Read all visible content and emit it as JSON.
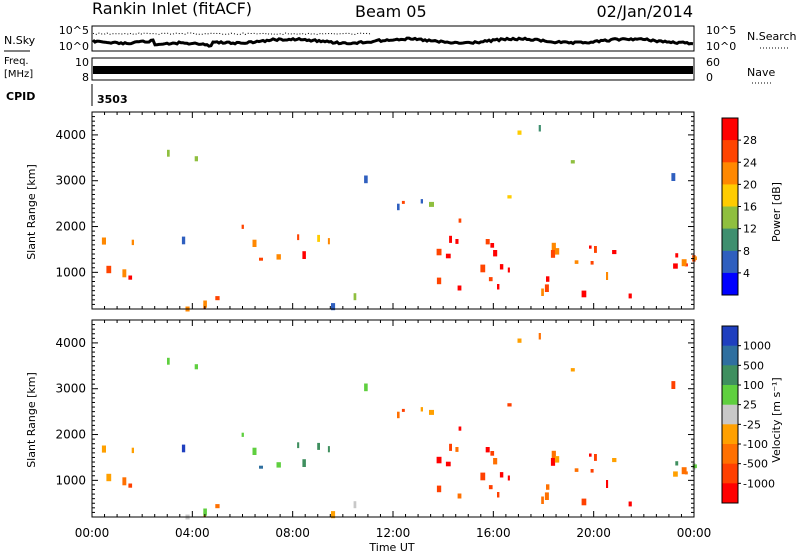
{
  "header": {
    "station": "Rankin Inlet (fitACF)",
    "beam": "Beam 05",
    "date": "02/Jan/2014"
  },
  "top_panel": {
    "nsky_label": "N.Sky",
    "nsearch_label": "N.Search",
    "left_tick_hi": "10^5",
    "left_tick_lo": "10^0",
    "right_tick_hi": "10^5",
    "right_tick_lo": "10^0",
    "freq_label_1": "Freq.",
    "freq_label_2": "[MHz]",
    "freq_tick_hi": "10",
    "freq_tick_lo": "8",
    "nave_label": "Nave",
    "nave_tick_hi": "60",
    "nave_tick_lo": "0",
    "cpid_label": "CPID",
    "cpid_value": "3503"
  },
  "colorbars": {
    "power": {
      "label": "Power [dB]",
      "ticks": [
        "28",
        "24",
        "20",
        "16",
        "12",
        "8",
        "4"
      ],
      "colors": [
        "#ff0000",
        "#ff4400",
        "#ff8800",
        "#ffcc00",
        "#8fbf3f",
        "#3f8f6f",
        "#2f5fbf",
        "#0000ff"
      ]
    },
    "velocity": {
      "label": "Velocity [m s⁻¹]",
      "ticks": [
        "1000",
        "500",
        "100",
        "25",
        "-25",
        "-100",
        "-500",
        "-1000"
      ],
      "colors": [
        "#1f3fbf",
        "#2f6f9f",
        "#3f8f5f",
        "#5fcf3f",
        "#c8c8c8",
        "#ffa000",
        "#ff7000",
        "#ff4000",
        "#ff0000"
      ]
    }
  },
  "chart_data": [
    {
      "type": "heatmap",
      "title": "Power",
      "xlabel": "Time UT",
      "ylabel": "Slant Range [km]",
      "x_ticks": [
        "00:00",
        "04:00",
        "08:00",
        "12:00",
        "16:00",
        "20:00",
        "00:00"
      ],
      "y_ticks": [
        1000,
        2000,
        3000,
        4000
      ],
      "ylim": [
        200,
        4500
      ],
      "xlim_hours": [
        0,
        24
      ],
      "colorbar": "Power [dB]",
      "colorbar_ticks": [
        4,
        8,
        12,
        16,
        20,
        24,
        28
      ]
    },
    {
      "type": "heatmap",
      "title": "Velocity",
      "xlabel": "Time UT",
      "ylabel": "Slant Range [km]",
      "x_ticks": [
        "00:00",
        "04:00",
        "08:00",
        "12:00",
        "16:00",
        "20:00",
        "00:00"
      ],
      "y_ticks": [
        1000,
        2000,
        3000,
        4000
      ],
      "ylim": [
        200,
        4500
      ],
      "xlim_hours": [
        0,
        24
      ],
      "colorbar": "Velocity [m s-1]",
      "colorbar_ticks": [
        1000,
        500,
        100,
        25,
        -25,
        -100,
        -500,
        -1000
      ]
    }
  ],
  "xaxis": {
    "ticks": [
      "00:00",
      "04:00",
      "08:00",
      "12:00",
      "16:00",
      "20:00",
      "00:00"
    ],
    "label": "Time UT"
  },
  "yaxis": {
    "label": "Slant Range [km]",
    "ticks": [
      "1000",
      "2000",
      "3000",
      "4000"
    ]
  }
}
